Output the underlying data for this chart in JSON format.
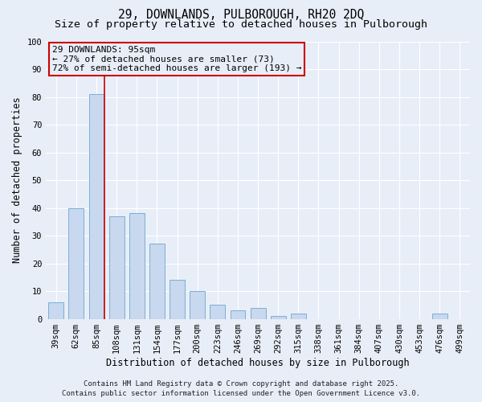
{
  "title_line1": "29, DOWNLANDS, PULBOROUGH, RH20 2DQ",
  "title_line2": "Size of property relative to detached houses in Pulborough",
  "xlabel": "Distribution of detached houses by size in Pulborough",
  "ylabel": "Number of detached properties",
  "categories": [
    "39sqm",
    "62sqm",
    "85sqm",
    "108sqm",
    "131sqm",
    "154sqm",
    "177sqm",
    "200sqm",
    "223sqm",
    "246sqm",
    "269sqm",
    "292sqm",
    "315sqm",
    "338sqm",
    "361sqm",
    "384sqm",
    "407sqm",
    "430sqm",
    "453sqm",
    "476sqm",
    "499sqm"
  ],
  "values": [
    6,
    40,
    81,
    37,
    38,
    27,
    14,
    10,
    5,
    3,
    4,
    1,
    2,
    0,
    0,
    0,
    0,
    0,
    0,
    2,
    0
  ],
  "bar_color": "#c8d8ee",
  "bar_edge_color": "#7bafd4",
  "ylim": [
    0,
    100
  ],
  "yticks": [
    0,
    10,
    20,
    30,
    40,
    50,
    60,
    70,
    80,
    90,
    100
  ],
  "vline_color": "#cc0000",
  "annotation_line1": "29 DOWNLANDS: 95sqm",
  "annotation_line2": "← 27% of detached houses are smaller (73)",
  "annotation_line3": "72% of semi-detached houses are larger (193) →",
  "annotation_box_color": "#cc0000",
  "footer_line1": "Contains HM Land Registry data © Crown copyright and database right 2025.",
  "footer_line2": "Contains public sector information licensed under the Open Government Licence v3.0.",
  "background_color": "#e8eef8",
  "grid_color": "#ffffff",
  "title_fontsize": 10.5,
  "subtitle_fontsize": 9.5,
  "axis_label_fontsize": 8.5,
  "tick_fontsize": 7.5,
  "annotation_fontsize": 8,
  "footer_fontsize": 6.5
}
